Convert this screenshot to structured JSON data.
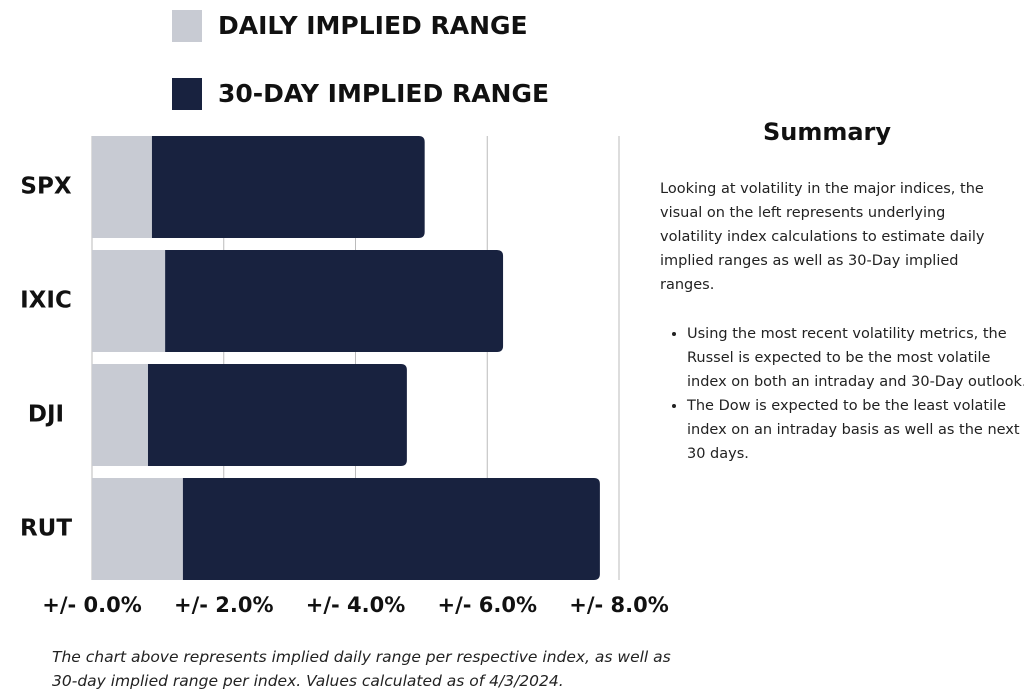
{
  "chart_data": {
    "type": "bar",
    "orientation": "horizontal",
    "stacked": true,
    "categories": [
      "SPX",
      "IXIC",
      "DJI",
      "RUT"
    ],
    "series": [
      {
        "name": "DAILY IMPLIED RANGE",
        "color": "#c8cbd3",
        "values": [
          0.91,
          1.11,
          0.85,
          1.38
        ]
      },
      {
        "name": "30-DAY IMPLIED RANGE",
        "color": "#18223f",
        "values": [
          4.14,
          5.13,
          3.93,
          6.33
        ]
      }
    ],
    "xlim": [
      0,
      8
    ],
    "xticks": [
      {
        "value": 0,
        "label": "+/- 0.0%"
      },
      {
        "value": 2,
        "label": "+/- 2.0%"
      },
      {
        "value": 4,
        "label": "+/- 4.0%"
      },
      {
        "value": 6,
        "label": "+/- 6.0%"
      },
      {
        "value": 8,
        "label": "+/- 8.0%"
      }
    ],
    "grid": true,
    "caption": "The chart above represents implied daily range per respective index, as well as 30-day implied range per index. Values calculated as of 4/3/2024."
  },
  "summary": {
    "title": "Summary",
    "paragraph": "Looking at volatility in the major indices, the visual on the left represents underlying volatility index calculations to estimate daily implied ranges as well as 30-Day implied ranges.",
    "bullets": [
      "Using the most recent volatility metrics, the Russel is expected to be the most volatile index on both an intraday and 30-Day outlook.",
      "The Dow is expected to be the least volatile index on an intraday basis as well as the next 30 days."
    ]
  }
}
